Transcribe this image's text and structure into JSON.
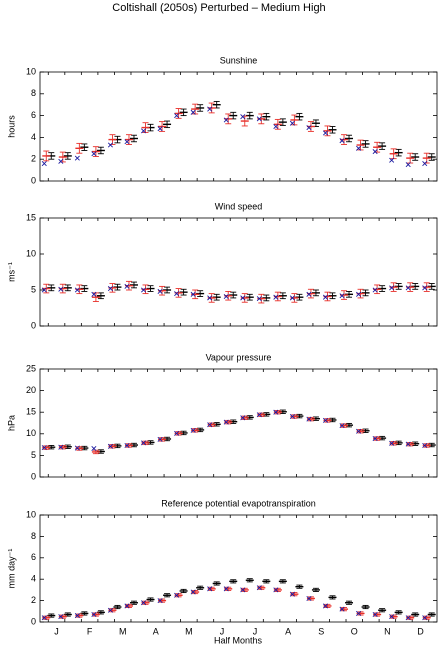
{
  "title": "Coltishall (2050s) Perturbed – Medium High",
  "xlabel": "Half Months",
  "months": [
    "J",
    "F",
    "M",
    "A",
    "M",
    "J",
    "J",
    "A",
    "S",
    "O",
    "N",
    "D"
  ],
  "chart_data": [
    {
      "type": "errorbar",
      "title": "Sunshine",
      "ylabel": "hours",
      "ylim": [
        0,
        10
      ],
      "yticks": [
        0,
        2,
        4,
        6,
        8,
        10
      ],
      "series": [
        {
          "color": "#000000",
          "marker": "bar",
          "error": 0.3,
          "values": [
            2.3,
            2.3,
            3.1,
            2.8,
            3.8,
            3.9,
            4.9,
            5.2,
            6.3,
            6.7,
            7.0,
            6.0,
            6.0,
            5.9,
            5.4,
            5.9,
            5.3,
            4.7,
            3.9,
            3.4,
            3.2,
            2.6,
            2.2,
            2.2
          ]
        },
        {
          "color": "#e8302a",
          "marker": "bar",
          "error": 0.45,
          "values": [
            2.3,
            2.2,
            3.0,
            2.7,
            3.8,
            3.8,
            4.9,
            5.0,
            6.2,
            6.6,
            6.7,
            5.7,
            5.5,
            5.7,
            5.2,
            5.6,
            5.0,
            4.6,
            3.8,
            3.3,
            3.1,
            2.5,
            2.1,
            2.1
          ]
        },
        {
          "color": "#1a1aa0",
          "marker": "cross",
          "values": [
            1.6,
            1.8,
            2.1,
            2.5,
            3.3,
            3.6,
            4.6,
            4.8,
            6.0,
            6.3,
            6.6,
            5.6,
            5.9,
            5.7,
            5.0,
            5.3,
            4.9,
            4.4,
            3.7,
            3.0,
            2.7,
            1.9,
            1.5,
            1.6
          ]
        }
      ]
    },
    {
      "type": "errorbar",
      "title": "Wind speed",
      "ylabel": "ms⁻¹",
      "ylim": [
        0,
        15
      ],
      "yticks": [
        0,
        5,
        10,
        15
      ],
      "series": [
        {
          "color": "#000000",
          "marker": "bar",
          "error": 0.4,
          "values": [
            5.3,
            5.3,
            5.2,
            4.2,
            5.4,
            5.7,
            5.2,
            5.0,
            4.7,
            4.5,
            4.0,
            4.3,
            4.0,
            3.9,
            4.2,
            4.0,
            4.6,
            4.2,
            4.4,
            4.6,
            5.2,
            5.5,
            5.5,
            5.5
          ]
        },
        {
          "color": "#e8302a",
          "marker": "bar",
          "error": 0.6,
          "values": [
            5.2,
            5.2,
            5.1,
            4.0,
            5.3,
            5.6,
            5.1,
            4.9,
            4.6,
            4.4,
            3.9,
            4.2,
            3.9,
            3.8,
            4.1,
            3.9,
            4.5,
            4.1,
            4.3,
            4.5,
            5.1,
            5.4,
            5.4,
            5.4
          ]
        },
        {
          "color": "#1a1aa0",
          "marker": "cross",
          "values": [
            5.0,
            5.1,
            5.0,
            4.4,
            5.2,
            5.5,
            5.0,
            4.8,
            4.5,
            4.4,
            3.9,
            4.1,
            3.9,
            3.8,
            4.0,
            3.9,
            4.4,
            4.0,
            4.2,
            4.4,
            5.0,
            5.3,
            5.3,
            5.3
          ]
        }
      ]
    },
    {
      "type": "errorbar",
      "title": "Vapour pressure",
      "ylabel": "hPa",
      "ylim": [
        0,
        25
      ],
      "yticks": [
        0,
        5,
        10,
        15,
        20,
        25
      ],
      "series": [
        {
          "color": "#000000",
          "marker": "bar",
          "error": 0.4,
          "values": [
            6.9,
            7.0,
            6.7,
            5.9,
            7.2,
            7.4,
            8.0,
            8.8,
            10.2,
            10.9,
            12.2,
            12.8,
            13.8,
            14.5,
            15.1,
            14.1,
            13.5,
            13.2,
            12.0,
            10.7,
            9.0,
            7.9,
            7.7,
            7.4
          ]
        },
        {
          "color": "#e8302a",
          "marker": "bar",
          "error": 0.4,
          "values": [
            6.8,
            6.9,
            6.6,
            5.8,
            7.1,
            7.3,
            7.9,
            8.7,
            10.1,
            10.8,
            12.1,
            12.7,
            13.7,
            14.4,
            15.0,
            14.0,
            13.4,
            13.1,
            11.9,
            10.6,
            8.9,
            7.8,
            7.6,
            7.3
          ]
        },
        {
          "color": "#1a1aa0",
          "marker": "cross",
          "values": [
            6.8,
            6.9,
            6.7,
            6.6,
            7.1,
            7.3,
            7.9,
            8.7,
            10.1,
            10.8,
            12.1,
            12.7,
            13.7,
            14.4,
            15.0,
            14.0,
            13.4,
            13.1,
            11.9,
            10.6,
            8.9,
            7.8,
            7.6,
            7.3
          ]
        }
      ]
    },
    {
      "type": "errorbar",
      "title": "Reference potential evapotranspiration",
      "ylabel": "mm day⁻¹",
      "ylim": [
        0,
        10
      ],
      "yticks": [
        0,
        2,
        4,
        6,
        8,
        10
      ],
      "series": [
        {
          "color": "#000000",
          "marker": "bar",
          "error": 0.15,
          "values": [
            0.6,
            0.7,
            0.8,
            0.9,
            1.4,
            1.8,
            2.1,
            2.5,
            2.9,
            3.2,
            3.6,
            3.8,
            3.9,
            3.8,
            3.8,
            3.3,
            3.0,
            2.3,
            1.8,
            1.4,
            1.1,
            0.9,
            0.7,
            0.7
          ]
        },
        {
          "color": "#e8302a",
          "marker": "bar",
          "error": 0.15,
          "values": [
            0.4,
            0.5,
            0.6,
            0.7,
            1.1,
            1.5,
            1.8,
            2.0,
            2.5,
            2.8,
            3.1,
            3.1,
            3.0,
            3.2,
            3.0,
            2.6,
            2.2,
            1.5,
            1.2,
            0.8,
            0.7,
            0.5,
            0.4,
            0.4
          ]
        },
        {
          "color": "#1a1aa0",
          "marker": "cross",
          "values": [
            0.4,
            0.5,
            0.6,
            0.7,
            1.1,
            1.5,
            1.8,
            2.0,
            2.5,
            2.8,
            3.1,
            3.1,
            3.0,
            3.2,
            3.0,
            2.6,
            2.2,
            1.5,
            1.2,
            0.8,
            0.7,
            0.5,
            0.4,
            0.4
          ]
        }
      ]
    }
  ]
}
